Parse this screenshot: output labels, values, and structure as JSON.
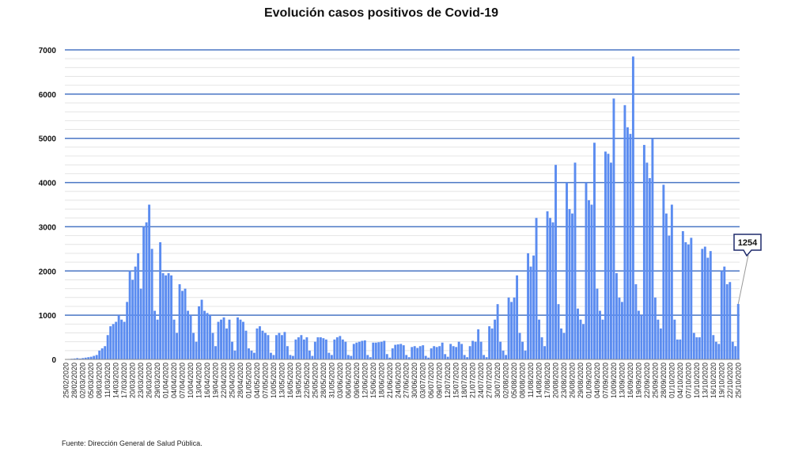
{
  "chart_data": {
    "type": "bar",
    "title": "Evolución casos positivos de Covid-19",
    "xlabel": "",
    "ylabel": "",
    "ylim": [
      0,
      7000
    ],
    "y_ticks": [
      0,
      1000,
      2000,
      3000,
      4000,
      5000,
      6000,
      7000
    ],
    "grid": true,
    "start_date": "25/02/2020",
    "end_date": "25/10/2020",
    "tick_labels": [
      "25/02/2020",
      "28/02/2020",
      "02/03/2020",
      "05/03/2020",
      "08/03/2020",
      "11/03/2020",
      "14/03/2020",
      "17/03/2020",
      "20/03/2020",
      "23/03/2020",
      "26/03/2020",
      "29/03/2020",
      "01/04/2020",
      "04/04/2020",
      "07/04/2020",
      "10/04/2020",
      "13/04/2020",
      "16/04/2020",
      "19/04/2020",
      "22/04/2020",
      "25/04/2020",
      "28/04/2020",
      "01/05/2020",
      "04/05/2020",
      "07/05/2020",
      "10/05/2020",
      "13/05/2020",
      "16/05/2020",
      "19/05/2020",
      "22/05/2020",
      "25/05/2020",
      "28/05/2020",
      "31/05/2020",
      "03/06/2020",
      "06/06/2020",
      "09/06/2020",
      "12/06/2020",
      "15/06/2020",
      "18/06/2020",
      "21/06/2020",
      "24/06/2020",
      "27/06/2020",
      "30/06/2020",
      "03/07/2020",
      "06/07/2020",
      "09/07/2020",
      "12/07/2020",
      "15/07/2020",
      "18/07/2020",
      "21/07/2020",
      "24/07/2020",
      "27/07/2020",
      "30/07/2020",
      "02/08/2020",
      "05/08/2020",
      "08/08/2020",
      "11/08/2020",
      "14/08/2020",
      "17/08/2020",
      "20/08/2020",
      "23/08/2020",
      "26/08/2020",
      "29/08/2020",
      "01/09/2020",
      "04/09/2020",
      "07/09/2020",
      "10/09/2020",
      "13/09/2020",
      "16/09/2020",
      "19/09/2020",
      "22/09/2020",
      "25/09/2020",
      "28/09/2020",
      "01/10/2020",
      "04/10/2020",
      "07/10/2020",
      "10/10/2020",
      "13/10/2020",
      "16/10/2020",
      "19/10/2020",
      "22/10/2020",
      "25/10/2020"
    ],
    "values": [
      5,
      10,
      15,
      20,
      30,
      20,
      30,
      40,
      50,
      60,
      80,
      100,
      200,
      250,
      300,
      550,
      750,
      800,
      850,
      1000,
      900,
      850,
      1300,
      2000,
      1800,
      2100,
      2400,
      1600,
      3000,
      3100,
      3500,
      2500,
      1100,
      900,
      2650,
      1950,
      1900,
      1950,
      1900,
      900,
      600,
      1700,
      1550,
      1600,
      1100,
      1000,
      600,
      400,
      1200,
      1350,
      1100,
      1050,
      1000,
      600,
      300,
      850,
      900,
      950,
      700,
      900,
      400,
      200,
      950,
      900,
      850,
      650,
      250,
      200,
      150,
      700,
      750,
      650,
      600,
      550,
      150,
      100,
      550,
      600,
      550,
      620,
      300,
      100,
      80,
      450,
      500,
      550,
      450,
      500,
      200,
      80,
      400,
      500,
      500,
      480,
      450,
      150,
      100,
      450,
      500,
      530,
      450,
      400,
      100,
      80,
      350,
      380,
      400,
      420,
      430,
      100,
      50,
      380,
      380,
      390,
      400,
      420,
      120,
      40,
      250,
      330,
      340,
      350,
      320,
      100,
      50,
      280,
      300,
      260,
      300,
      320,
      80,
      40,
      250,
      300,
      280,
      300,
      380,
      120,
      60,
      350,
      300,
      280,
      400,
      350,
      100,
      50,
      300,
      420,
      400,
      680,
      400,
      100,
      50,
      750,
      700,
      900,
      1250,
      400,
      200,
      100,
      1400,
      1300,
      1400,
      1900,
      600,
      400,
      200,
      2400,
      2100,
      2350,
      3200,
      900,
      500,
      300,
      3350,
      3200,
      3100,
      4400,
      1250,
      700,
      600,
      4000,
      3400,
      3300,
      4450,
      1150,
      900,
      800,
      4000,
      3600,
      3500,
      4900,
      1600,
      1100,
      900,
      4700,
      4650,
      4450,
      5900,
      1950,
      1400,
      1300,
      5750,
      5250,
      5100,
      6850,
      1700,
      1100,
      1000,
      4850,
      4450,
      4100,
      5000,
      1400,
      900,
      700,
      3950,
      3300,
      2800,
      3500,
      900,
      450,
      450,
      2900,
      2650,
      2600,
      2750,
      600,
      500,
      500,
      2500,
      2550,
      2300,
      2450,
      550,
      400,
      350,
      2000,
      2100,
      1700,
      1750,
      400,
      300,
      1254
    ],
    "annotations": [
      {
        "label": "1254",
        "date": "25/10/2020",
        "value": 1254
      }
    ],
    "colors": {
      "bar": "#5b8cf0",
      "major_grid": "#4a76c4",
      "minor_grid": "#e4e4e4",
      "callout_border": "#1f2a6b"
    }
  },
  "source_note": "Fuente: Dirección General de Salud Pública."
}
